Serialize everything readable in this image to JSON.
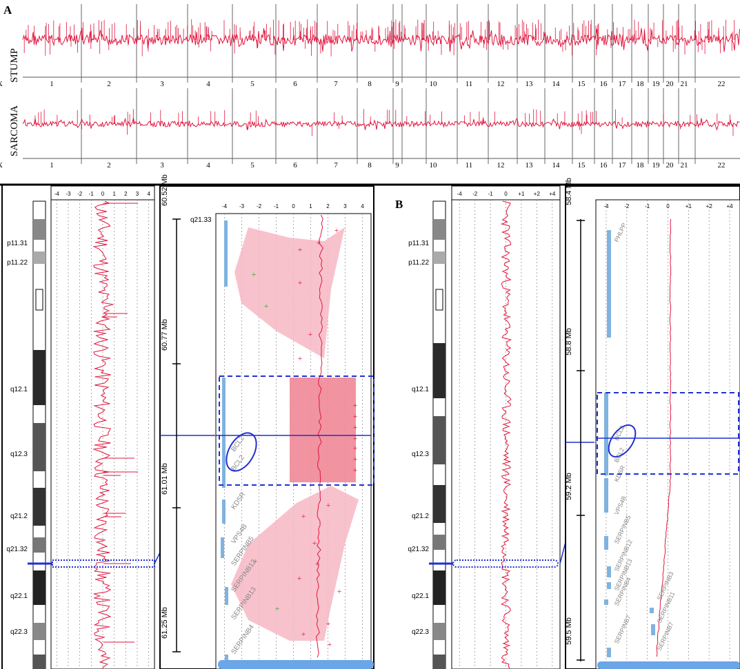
{
  "figure": {
    "panel_a_label": "A",
    "panel_b_label": "B",
    "tracks": [
      {
        "name": "STUMP"
      },
      {
        "name": "SARCOMA"
      }
    ],
    "chromosomes": [
      "1",
      "2",
      "3",
      "4",
      "5",
      "6",
      "7",
      "8",
      "9",
      "10",
      "11",
      "12",
      "13",
      "14",
      "15",
      "16",
      "17",
      "18",
      "19",
      "20",
      "21",
      "22",
      "X"
    ],
    "cytobands": [
      "p11.31",
      "p11.22",
      "q12.1",
      "q12.3",
      "q21.2",
      "q21.32",
      "q22.1",
      "q22.3"
    ],
    "log_axis_ticks_left": [
      "-4",
      "-3",
      "-2",
      "-1",
      "0",
      "1",
      "2",
      "3",
      "4"
    ],
    "log_axis_ticks_right": [
      "-4",
      "-2",
      "-1",
      "0",
      "+1",
      "+2",
      "+4"
    ],
    "zoom_left": {
      "band_label": "q21.33",
      "mb_labels": [
        "60.52 Mb",
        "60.77 Mb",
        "61.01 Mb",
        "61.25 Mb"
      ],
      "genes": [
        "BCL2",
        "BCL2",
        "KDSR",
        "VPS4B",
        "SERPINB5",
        "SERPINB12",
        "SERPINB13",
        "SERPINB4"
      ]
    },
    "zoom_right": {
      "mb_labels": [
        "58.4 Mb",
        "58.8 Mb",
        "59.2 Mb",
        "59.5 Mb"
      ],
      "genes": [
        "PHLPP",
        "BCL2",
        "BCL2",
        "KDSR",
        "VPS4B",
        "SERPINB5",
        "SERPINB12",
        "SERPINB13",
        "SERPINB4",
        "SERPINB7",
        "SERPINB3",
        "SERPINB11",
        "SERPINB7"
      ]
    }
  },
  "colors": {
    "signal": "#e0143c",
    "shade": "#f7b7c3",
    "highlight": "#f08796",
    "selection": "#1f2fd0",
    "chrom_dark": "#2a2a2a",
    "chrom_mid": "#8a8a8a"
  }
}
